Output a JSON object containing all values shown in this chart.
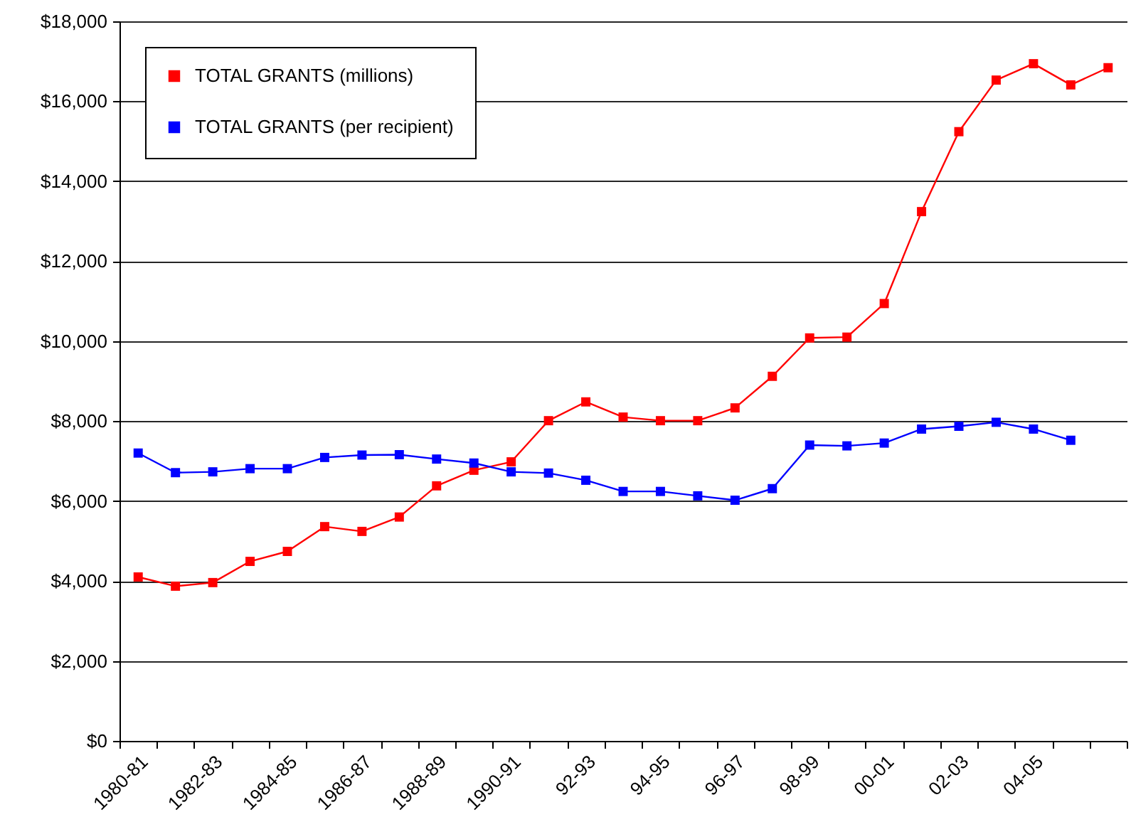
{
  "chart_data": {
    "type": "line",
    "categories": [
      "1980-81",
      null,
      "1982-83",
      null,
      "1984-85",
      null,
      "1986-87",
      null,
      "1988-89",
      null,
      "1990-91",
      null,
      "92-93",
      null,
      "94-95",
      null,
      "96-97",
      null,
      "98-99",
      null,
      "00-01",
      null,
      "02-03",
      null,
      "04-05",
      null,
      null
    ],
    "series": [
      {
        "name": "TOTAL GRANTS (millions)",
        "color": "#ff0000",
        "values": [
          4100,
          3870,
          3960,
          4490,
          4740,
          5360,
          5240,
          5600,
          6380,
          6770,
          6980,
          8010,
          8480,
          8100,
          8010,
          8010,
          8330,
          9120,
          10080,
          10100,
          10940,
          13240,
          15240,
          16530,
          16940,
          16410,
          16840
        ]
      },
      {
        "name": "TOTAL GRANTS (per recipient)",
        "color": "#0000ff",
        "values": [
          7200,
          6710,
          6730,
          6810,
          6810,
          7090,
          7150,
          7160,
          7050,
          6950,
          6730,
          6700,
          6520,
          6240,
          6240,
          6130,
          6020,
          6310,
          7400,
          7380,
          7450,
          7800,
          7870,
          7970,
          7800,
          7520,
          null
        ]
      }
    ],
    "ylim": [
      0,
      18000
    ],
    "yticks": [
      {
        "value": 0,
        "label": "$0"
      },
      {
        "value": 2000,
        "label": "$2,000"
      },
      {
        "value": 4000,
        "label": "$4,000"
      },
      {
        "value": 6000,
        "label": "$6,000"
      },
      {
        "value": 8000,
        "label": "$8,000"
      },
      {
        "value": 10000,
        "label": "$10,000"
      },
      {
        "value": 12000,
        "label": "$12,000"
      },
      {
        "value": 14000,
        "label": "$14,000"
      },
      {
        "value": 16000,
        "label": "$16,000"
      },
      {
        "value": 18000,
        "label": "$18,000"
      }
    ],
    "grid": "y",
    "legend": "top left",
    "marker": "square"
  }
}
